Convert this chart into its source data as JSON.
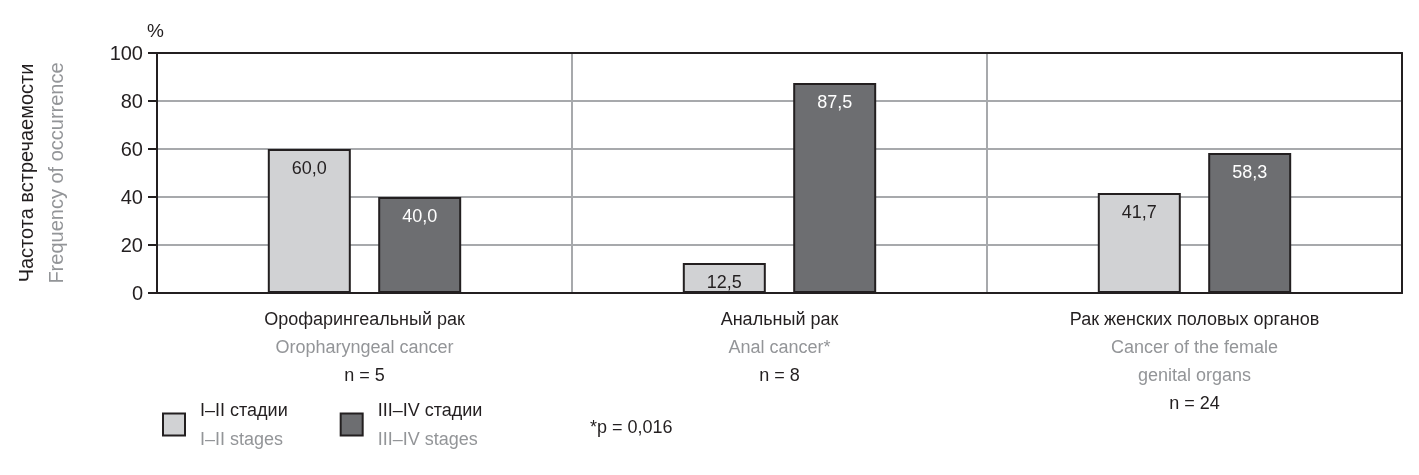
{
  "chart_data": {
    "type": "bar",
    "ylabel": "Частота встречаемости\nFrequency of occurrence",
    "categories": [
      "Орофарингеальный рак\nOropharyngeal cancer\nn = 5",
      "Анальный рак\nAnal cancer*\nn = 8",
      "Рак женских половых органов\nCancer of the female\ngenital organs\nn = 24"
    ],
    "series": [
      {
        "name": "I–II стадии\nI–II stages",
        "color": "#d1d2d4",
        "values": [
          60.0,
          12.5,
          41.7
        ],
        "value_labels": [
          "60,0",
          "12,5",
          "41,7"
        ]
      },
      {
        "name": "III–IV стадии\nIII–IV stages",
        "color": "#6d6e71",
        "values": [
          40.0,
          87.5,
          58.3
        ],
        "value_labels": [
          "40,0",
          "87,5",
          "58,3"
        ]
      }
    ],
    "ylim": [
      0,
      100
    ],
    "yticks": [
      0,
      20,
      40,
      60,
      80,
      100
    ],
    "grid": true,
    "legend": "bottom left",
    "annotations": [
      "%",
      "*p = 0,016"
    ]
  }
}
